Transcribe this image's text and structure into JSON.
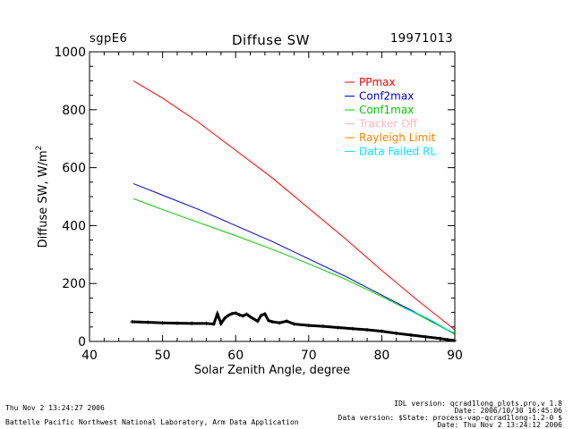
{
  "header": {
    "site": "sgpE6",
    "title": "Diffuse SW",
    "date": "19971013"
  },
  "footer": {
    "left_line1": "Thu Nov  2 13:24:27 2006",
    "left_line2": "Battelle Pacific Northwest National Laboratory, Arm Data Application",
    "right_line1": "IDL version: qcrad1long_plots.pro,v 1.8",
    "right_line2": "Date: 2006/10/30 16:45:06",
    "right_line3": "Data version: $State: process-vap-qcrad1long-1.2-0 $",
    "right_line4": "Date: Thu Nov  2 13:24:12 2006"
  },
  "chart_data": {
    "type": "line",
    "title": "Diffuse SW",
    "xlabel": "Solar Zenith Angle, degree",
    "ylabel": "Diffuse SW, W/m",
    "ylabel_sup": "2",
    "xlim": [
      40,
      90
    ],
    "ylim": [
      0,
      1000
    ],
    "xticks": [
      40,
      50,
      60,
      70,
      80,
      90
    ],
    "yticks": [
      0,
      200,
      400,
      600,
      800,
      1000
    ],
    "grid": false,
    "legend_position": "top-right",
    "legend": [
      {
        "name": "PPmax",
        "color": "#ff0000"
      },
      {
        "name": "Conf2max",
        "color": "#0000cc"
      },
      {
        "name": "Conf1max",
        "color": "#00cc00"
      },
      {
        "name": "Tracker Off",
        "color": "#ffb6c1"
      },
      {
        "name": "Rayleigh Limit",
        "color": "#ff8000"
      },
      {
        "name": "Data Failed RL",
        "color": "#00e5ff"
      }
    ],
    "series": [
      {
        "name": "PPmax",
        "color": "#ff0000",
        "x": [
          46,
          50,
          55,
          60,
          65,
          70,
          75,
          80,
          85,
          90
        ],
        "y": [
          900,
          840,
          755,
          660,
          565,
          460,
          355,
          245,
          140,
          40
        ]
      },
      {
        "name": "Conf2max",
        "color": "#0000cc",
        "x": [
          46,
          50,
          55,
          60,
          65,
          70,
          75,
          80,
          85,
          90
        ],
        "y": [
          545,
          505,
          455,
          400,
          345,
          285,
          225,
          160,
          95,
          25
        ]
      },
      {
        "name": "Conf1max",
        "color": "#00cc00",
        "x": [
          46,
          50,
          55,
          60,
          65,
          70,
          75,
          80,
          85,
          90
        ],
        "y": [
          493,
          455,
          410,
          365,
          318,
          268,
          215,
          155,
          92,
          25
        ]
      },
      {
        "name": "Data Failed RL",
        "color": "#00e5ff",
        "x": [
          83,
          85,
          87,
          89,
          90
        ],
        "y": [
          115,
          95,
          70,
          40,
          30
        ]
      }
    ],
    "observations": {
      "color": "#000000",
      "x": [
        45.8,
        48,
        50,
        52,
        54,
        56,
        57,
        57.5,
        58,
        58.5,
        59,
        59.5,
        60,
        60.5,
        61,
        61.5,
        62,
        63,
        63.5,
        64,
        64.5,
        65,
        66,
        67,
        68,
        70,
        72,
        74,
        76,
        78,
        80,
        82,
        84,
        86,
        88,
        89,
        90
      ],
      "y": [
        68,
        66,
        64,
        63,
        62,
        62,
        60,
        95,
        62,
        80,
        90,
        96,
        98,
        92,
        88,
        94,
        85,
        70,
        90,
        95,
        72,
        68,
        64,
        70,
        60,
        55,
        52,
        48,
        44,
        40,
        35,
        28,
        22,
        16,
        10,
        6,
        3
      ]
    }
  }
}
